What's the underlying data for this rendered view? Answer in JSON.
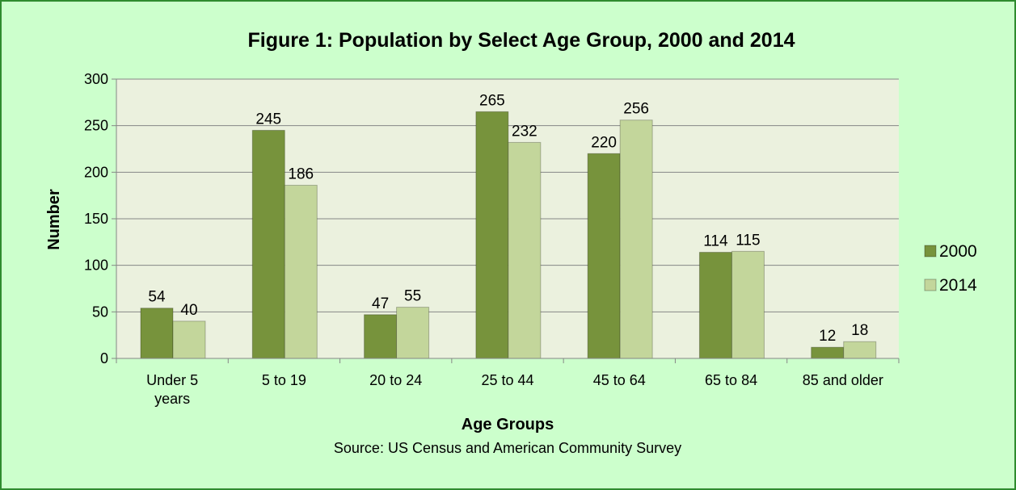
{
  "chart_data": {
    "type": "bar",
    "title": "Figure 1: Population by Select Age Group, 2000 and 2014",
    "xlabel": "Age Groups",
    "ylabel": "Number",
    "source": "Source: US Census and American Community Survey",
    "categories": [
      [
        "Under 5",
        "years"
      ],
      [
        "5 to 19"
      ],
      [
        "20 to 24"
      ],
      [
        "25 to 44"
      ],
      [
        "45 to 64"
      ],
      [
        "65 to 84"
      ],
      [
        "85 and older"
      ]
    ],
    "series": [
      {
        "name": "2000",
        "color": "#77933c",
        "values": [
          54,
          245,
          47,
          265,
          220,
          114,
          12
        ]
      },
      {
        "name": "2014",
        "color": "#c3d69b",
        "values": [
          40,
          186,
          55,
          232,
          256,
          115,
          18
        ]
      }
    ],
    "ylim": [
      0,
      300
    ],
    "yticks": [
      0,
      50,
      100,
      150,
      200,
      250,
      300
    ],
    "grid": true,
    "legend": "right",
    "plot_background": "#ebf1de"
  }
}
